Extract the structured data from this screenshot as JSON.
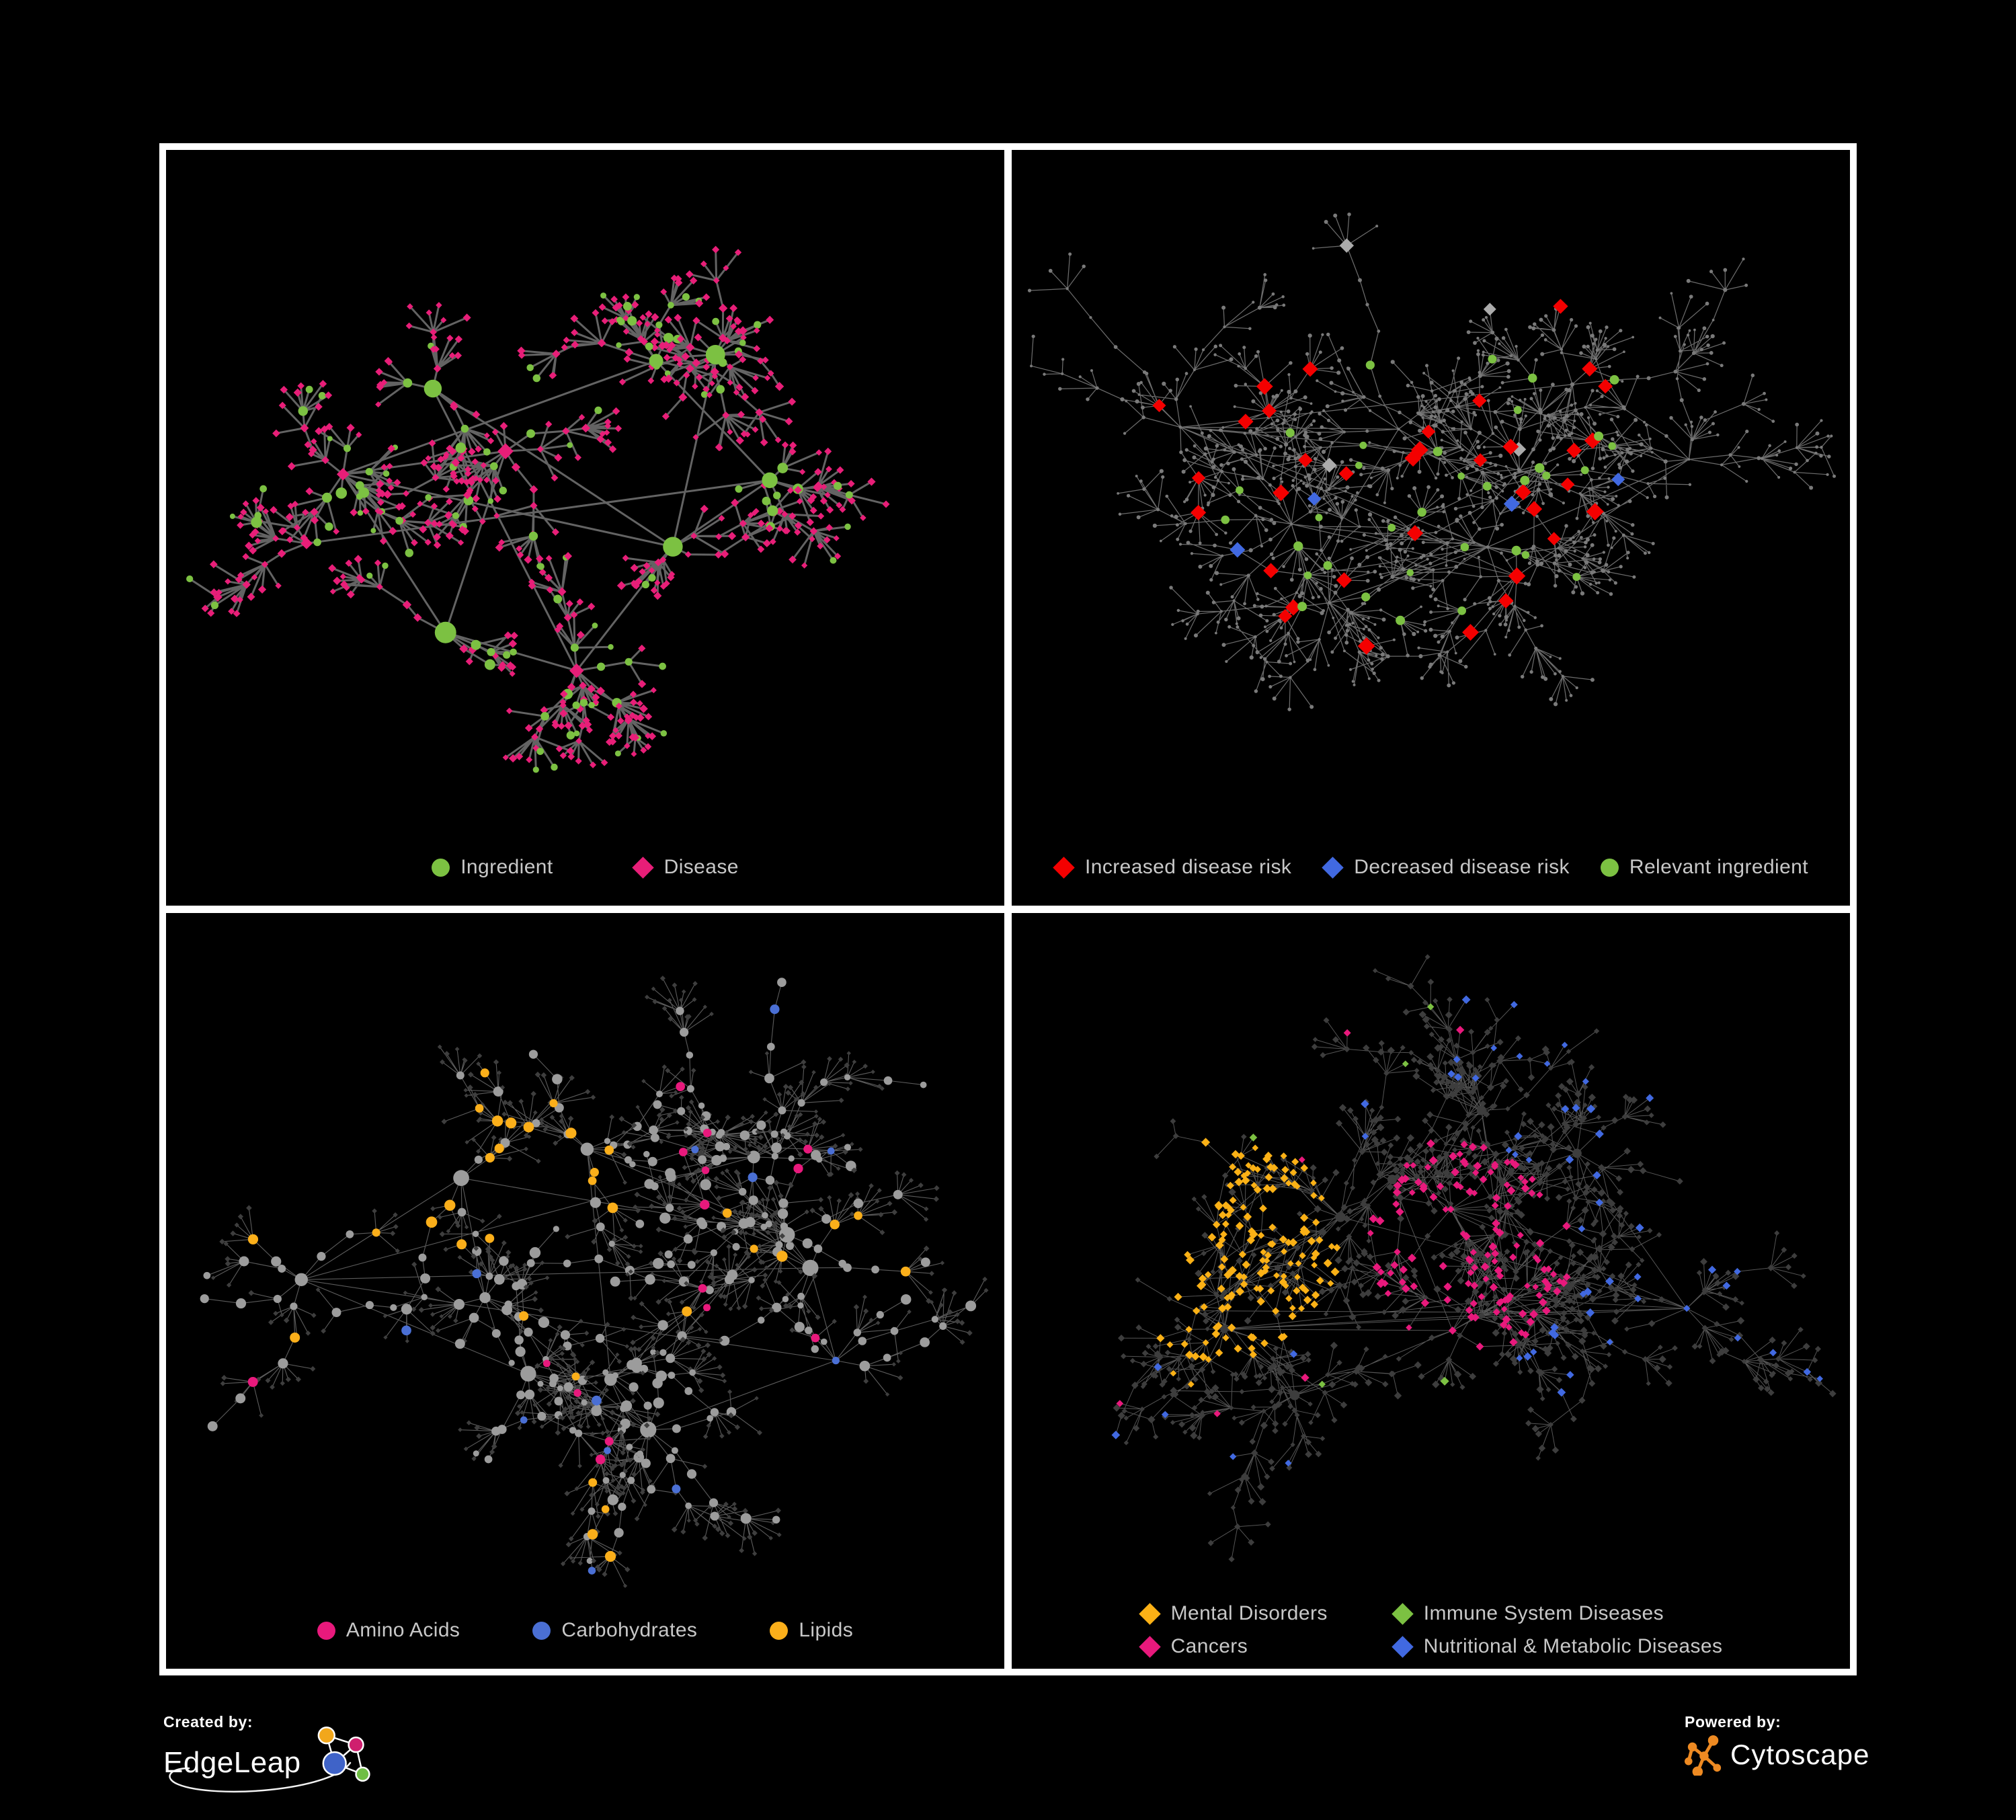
{
  "colors": {
    "background": "#000000",
    "frame": "#ffffff",
    "legend_text": "#c8c8c8"
  },
  "footer": {
    "created_by": {
      "label": "Created by:",
      "brand": "EdgeLeap"
    },
    "powered_by": {
      "label": "Powered by:",
      "brand": "Cytoscape"
    }
  },
  "panels": [
    {
      "name": "ingredient-disease",
      "legend_gap": "gap-wide",
      "legend": [
        {
          "label": "Ingredient",
          "shape": "circle",
          "color": "#7cc142"
        },
        {
          "label": "Disease",
          "shape": "diamond",
          "color": "#e81e78"
        }
      ],
      "network": {
        "style": "p1",
        "seed": 1042,
        "hubs": 10,
        "step": [
          20,
          42
        ],
        "chain": [
          1,
          4
        ],
        "leafProb": 0.55,
        "fan": [
          3,
          9
        ],
        "edge": {
          "color": "#6e6e6e",
          "width": 2.4,
          "opacity": 0.9
        },
        "colors": {
          "ingredient": "#7cc142",
          "disease": "#e81e78"
        }
      }
    },
    {
      "name": "disease-risk",
      "legend_gap": "gap-tight",
      "legend": [
        {
          "label": "Increased disease risk",
          "shape": "diamond",
          "color": "#f40000"
        },
        {
          "label": "Decreased disease risk",
          "shape": "diamond",
          "color": "#4169e1"
        },
        {
          "label": "Relevant ingredient",
          "shape": "circle",
          "color": "#7cc142"
        }
      ],
      "network": {
        "style": "p2",
        "seed": 707,
        "hubs": 11,
        "step": [
          26,
          52
        ],
        "chain": [
          2,
          6
        ],
        "leafProb": 0.5,
        "fan": [
          2,
          8
        ],
        "edge": {
          "color": "#8f8f8f",
          "width": 1.0,
          "opacity": 0.75
        },
        "colors": {
          "base": "#7a7a7a",
          "increased": "#f40000",
          "decreased": "#4169e1",
          "neutral": "#ababab",
          "ingredient": "#7cc142"
        }
      }
    },
    {
      "name": "nutrient-classes",
      "legend_gap": "gap-mid",
      "legend": [
        {
          "label": "Amino Acids",
          "shape": "circle",
          "color": "#e8197c"
        },
        {
          "label": "Carbohydrates",
          "shape": "circle",
          "color": "#4a6fd4"
        },
        {
          "label": "Lipids",
          "shape": "circle",
          "color": "#fbaf1a"
        }
      ],
      "network": {
        "style": "p3",
        "seed": 1313,
        "hubs": 11,
        "step": [
          26,
          52
        ],
        "chain": [
          2,
          6
        ],
        "leafProb": 0.5,
        "fan": [
          2,
          8
        ],
        "edge": {
          "color": "#a6a6a6",
          "width": 0.9,
          "opacity": 0.55
        },
        "colors": {
          "base": "#9c9c9c",
          "base_leaf": "#3e3e3e",
          "amino": "#e8197c",
          "carbs": "#4a6fd4",
          "lipids": "#fbaf1a"
        }
      }
    },
    {
      "name": "disease-classes",
      "legend_gap": "grid-2",
      "legend": [
        {
          "label": "Mental Disorders",
          "shape": "diamond",
          "color": "#fbb116"
        },
        {
          "label": "Immune System Diseases",
          "shape": "diamond",
          "color": "#7cc142"
        },
        {
          "label": "Cancers",
          "shape": "diamond",
          "color": "#e8197c"
        },
        {
          "label": "Nutritional & Metabolic Diseases",
          "shape": "diamond",
          "color": "#4169e1"
        }
      ],
      "network": {
        "style": "p4",
        "seed": 2929,
        "hubs": 12,
        "step": [
          26,
          50
        ],
        "chain": [
          2,
          6
        ],
        "leafProb": 0.52,
        "fan": [
          2,
          8
        ],
        "edge": {
          "color": "#aaaaaa",
          "width": 0.8,
          "opacity": 0.5
        },
        "colors": {
          "base": "#3d3d3d",
          "mental": "#fbb116",
          "immune": "#7cc142",
          "cancers": "#e8197c",
          "nutritional": "#4169e1"
        }
      }
    }
  ]
}
